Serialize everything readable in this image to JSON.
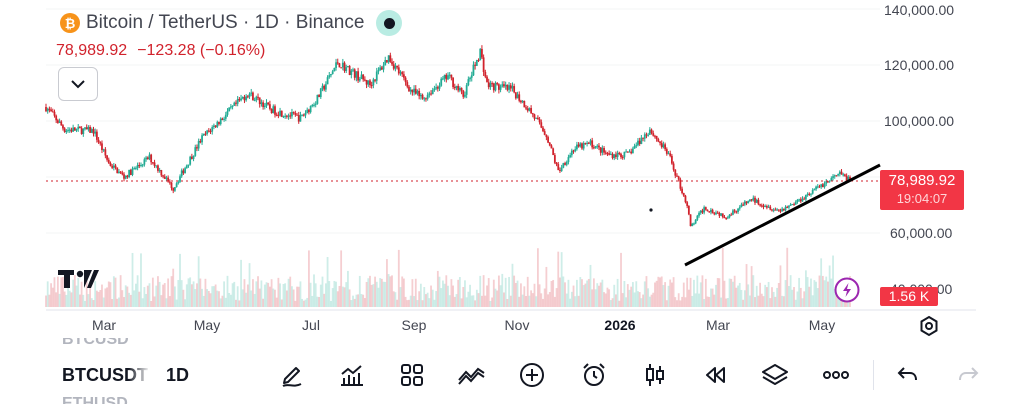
{
  "header": {
    "coin_glyph": "₿",
    "title": "Bitcoin / TetherUS · 1D · Binance",
    "last_price": "78,989.92",
    "change": "−123.28 (−0.16%)"
  },
  "price_axis": {
    "labels": [
      "140,000.00",
      "120,000.00",
      "100,000.00",
      "60,000.00",
      "40,000.00"
    ],
    "current_price": "78,989.92",
    "countdown": "19:04:07",
    "volume": "1.56 K"
  },
  "time_axis": {
    "labels": [
      "Mar",
      "May",
      "Jul",
      "Sep",
      "Nov",
      "2026",
      "Mar",
      "May"
    ]
  },
  "toolbar": {
    "symbol": "BTCUSDT",
    "symbol_prev": "BTCUSD",
    "symbol_next": "ETHUSD",
    "timeframe": "1D",
    "icons": [
      "pen-draw-icon",
      "indicators-icon",
      "layouts-icon",
      "patterns-icon",
      "add-icon",
      "alarm-icon",
      "candles-icon",
      "replay-icon",
      "layers-icon",
      "more-icon",
      "undo-icon",
      "redo-icon"
    ]
  },
  "colors": {
    "up": "#22ab94",
    "down": "#d1222c",
    "accent": "#f23645",
    "brand": "#f7931a"
  },
  "chart_data": {
    "type": "candlestick",
    "interval": "1D",
    "y_range": [
      40000,
      140000
    ],
    "current_price": 78989.92,
    "anchors": [
      [
        "2025-01-23",
        105000
      ],
      [
        "2025-02-03",
        97000
      ],
      [
        "2025-02-20",
        96500
      ],
      [
        "2025-03-01",
        85000
      ],
      [
        "2025-03-10",
        80000
      ],
      [
        "2025-03-25",
        87000
      ],
      [
        "2025-04-08",
        76000
      ],
      [
        "2025-04-25",
        94000
      ],
      [
        "2025-05-12",
        104000
      ],
      [
        "2025-05-22",
        110000
      ],
      [
        "2025-06-05",
        104000
      ],
      [
        "2025-06-22",
        101000
      ],
      [
        "2025-07-02",
        108000
      ],
      [
        "2025-07-14",
        121000
      ],
      [
        "2025-08-02",
        113000
      ],
      [
        "2025-08-13",
        123000
      ],
      [
        "2025-08-26",
        111000
      ],
      [
        "2025-09-02",
        108000
      ],
      [
        "2025-09-17",
        116000
      ],
      [
        "2025-09-26",
        109000
      ],
      [
        "2025-10-06",
        125000
      ],
      [
        "2025-10-10",
        113000
      ],
      [
        "2025-10-25",
        111000
      ],
      [
        "2025-11-04",
        104000
      ],
      [
        "2025-11-14",
        95000
      ],
      [
        "2025-11-21",
        82000
      ],
      [
        "2025-11-30",
        90000
      ],
      [
        "2025-12-10",
        92000
      ],
      [
        "2025-12-20",
        88000
      ],
      [
        "2026-01-01",
        88000
      ],
      [
        "2026-01-14",
        97000
      ],
      [
        "2026-01-25",
        88000
      ],
      [
        "2026-02-05",
        70000
      ],
      [
        "2026-02-07",
        62000
      ],
      [
        "2026-02-15",
        69000
      ],
      [
        "2026-02-28",
        66000
      ],
      [
        "2026-03-15",
        72000
      ],
      [
        "2026-03-31",
        68000
      ],
      [
        "2026-04-10",
        71000
      ],
      [
        "2026-04-25",
        77000
      ],
      [
        "2026-05-06",
        81000
      ],
      [
        "2026-05-12",
        78990
      ]
    ]
  }
}
